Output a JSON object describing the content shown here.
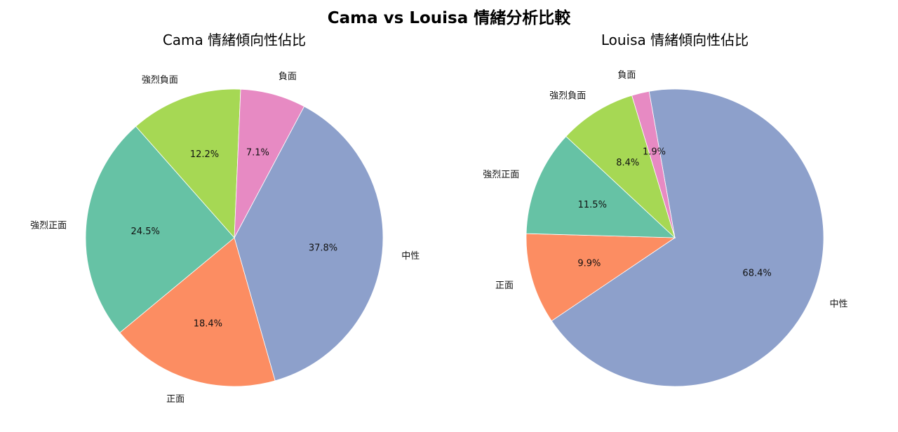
{
  "figure": {
    "title": "Cama vs Louisa 情緒分析比較",
    "colors": {
      "中性": "#8DA0CB",
      "正面": "#FC8D62",
      "強烈正面": "#66C2A5",
      "強烈負面": "#A6D854",
      "負面": "#E78AC3"
    }
  },
  "chart_data": [
    {
      "type": "pie",
      "title": "Cama 情緒傾向性佔比",
      "slices": [
        {
          "label": "中性",
          "value": 37.8,
          "value_label": "37.8%"
        },
        {
          "label": "正面",
          "value": 18.4,
          "value_label": "18.4%"
        },
        {
          "label": "強烈正面",
          "value": 24.5,
          "value_label": "24.5%"
        },
        {
          "label": "強烈負面",
          "value": 12.2,
          "value_label": "12.2%"
        },
        {
          "label": "負面",
          "value": 7.1,
          "value_label": "7.1%"
        }
      ]
    },
    {
      "type": "pie",
      "title": "Louisa 情緒傾向性佔比",
      "slices": [
        {
          "label": "中性",
          "value": 68.4,
          "value_label": "68.4%"
        },
        {
          "label": "正面",
          "value": 9.9,
          "value_label": "9.9%"
        },
        {
          "label": "強烈正面",
          "value": 11.5,
          "value_label": "11.5%"
        },
        {
          "label": "強烈負面",
          "value": 8.4,
          "value_label": "8.4%"
        },
        {
          "label": "負面",
          "value": 1.9,
          "value_label": "1.9%"
        }
      ]
    }
  ]
}
